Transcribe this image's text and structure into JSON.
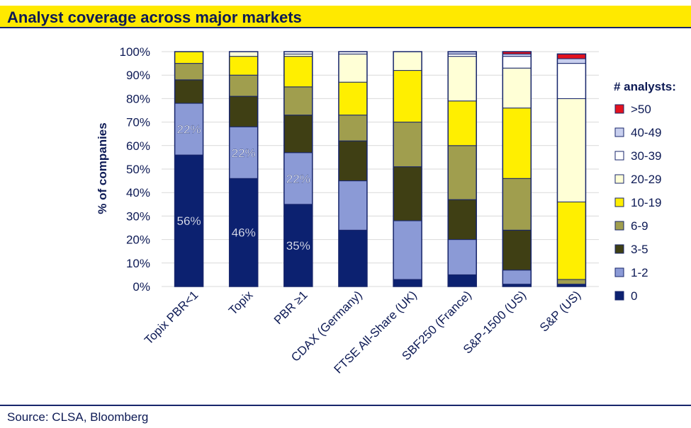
{
  "title": "Analyst coverage across major markets",
  "source": "Source: CLSA, Bloomberg",
  "chart_data": {
    "type": "bar",
    "stacked": true,
    "normalized": true,
    "ylabel": "% of companies",
    "ylim": [
      0,
      100
    ],
    "yticks": [
      "0%",
      "10%",
      "20%",
      "30%",
      "40%",
      "50%",
      "60%",
      "70%",
      "80%",
      "90%",
      "100%"
    ],
    "categories": [
      "Topix PBR<1",
      "Topix",
      "PBR ≥1",
      "CDAX (Germany)",
      "FTSE All-Share (UK)",
      "SBF250 (France)",
      "S&P-1500 (US)",
      "S&P (US)"
    ],
    "legend_title": "# analysts:",
    "legend_position": "right",
    "series": [
      {
        "name": "0",
        "color": "#0c2170",
        "values": [
          56,
          46,
          35,
          24,
          3,
          5,
          1,
          1
        ]
      },
      {
        "name": "1-2",
        "color": "#8b9ad6",
        "values": [
          22,
          22,
          22,
          21,
          25,
          15,
          6,
          0
        ]
      },
      {
        "name": "3-5",
        "color": "#3f3f14",
        "values": [
          10,
          13,
          16,
          17,
          23,
          17,
          17,
          0
        ]
      },
      {
        "name": "6-9",
        "color": "#a09e4e",
        "values": [
          7,
          9,
          12,
          11,
          19,
          23,
          22,
          2
        ]
      },
      {
        "name": "10-19",
        "color": "#ffef00",
        "values": [
          5,
          8,
          13,
          14,
          22,
          19,
          30,
          33
        ]
      },
      {
        "name": "20-29",
        "color": "#ffffd6",
        "values": [
          0,
          2,
          1,
          12,
          8,
          19,
          17,
          44
        ]
      },
      {
        "name": "30-39",
        "color": "#ffffff",
        "values": [
          0,
          0,
          1,
          1,
          0,
          1,
          5,
          15
        ]
      },
      {
        "name": "40-49",
        "color": "#c8cfee",
        "values": [
          0,
          0,
          0,
          0,
          0,
          1,
          1,
          2
        ]
      },
      {
        "name": ">50",
        "color": "#e3121e",
        "values": [
          0,
          0,
          0,
          0,
          0,
          0,
          1,
          2
        ]
      }
    ],
    "data_labels": [
      {
        "category": "Topix PBR<1",
        "series": "0",
        "text": "56%"
      },
      {
        "category": "Topix PBR<1",
        "series": "1-2",
        "text": "22%"
      },
      {
        "category": "Topix",
        "series": "0",
        "text": "46%"
      },
      {
        "category": "Topix",
        "series": "1-2",
        "text": "22%"
      },
      {
        "category": "PBR ≥1",
        "series": "0",
        "text": "35%"
      },
      {
        "category": "PBR ≥1",
        "series": "1-2",
        "text": "22%"
      }
    ]
  }
}
